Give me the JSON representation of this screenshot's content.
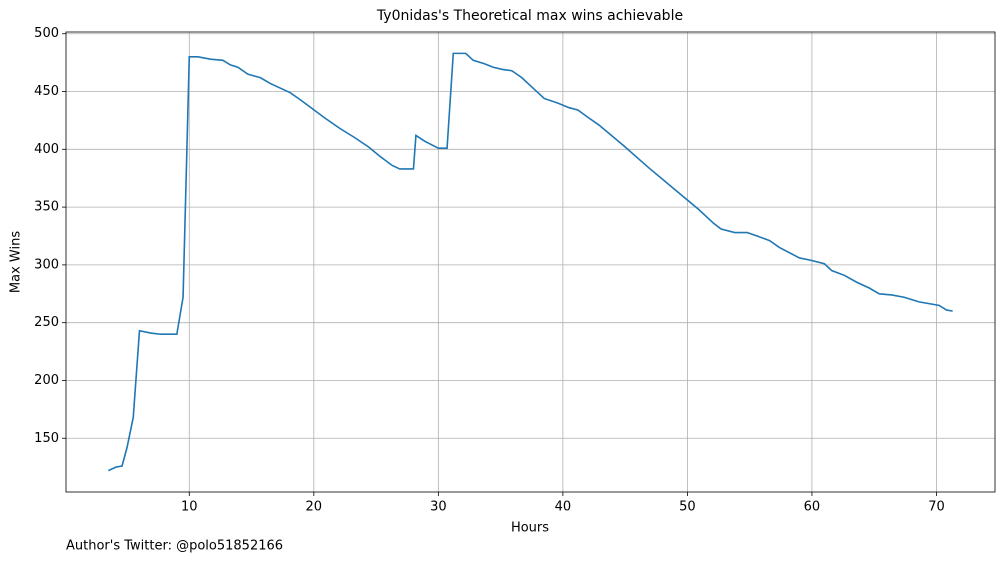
{
  "chart_data": {
    "type": "line",
    "title": "Ty0nidas's Theoretical max wins achievable",
    "xlabel": "Hours",
    "ylabel": "Max Wins",
    "footer": "Author's Twitter: @polo51852166",
    "x": [
      3.5,
      4.1,
      4.6,
      5.0,
      5.5,
      6.0,
      6.9,
      7.7,
      8.5,
      9.0,
      9.5,
      10.0,
      10.7,
      11.7,
      12.7,
      13.3,
      13.9,
      14.7,
      15.7,
      16.5,
      17.3,
      18.1,
      18.9,
      19.9,
      20.9,
      22.1,
      23.3,
      24.4,
      25.3,
      26.3,
      26.9,
      28.0,
      28.2,
      28.9,
      30.0,
      30.7,
      31.2,
      32.2,
      32.8,
      33.7,
      34.4,
      35.2,
      35.9,
      36.7,
      37.5,
      38.5,
      39.6,
      40.5,
      41.2,
      42.1,
      42.9,
      44.9,
      46.9,
      48.9,
      50.9,
      52.1,
      52.7,
      53.8,
      54.8,
      55.6,
      56.6,
      57.4,
      59.0,
      59.9,
      61.0,
      61.6,
      62.6,
      63.6,
      64.6,
      65.4,
      66.4,
      67.4,
      68.6,
      70.2,
      70.8,
      71.3
    ],
    "series": [
      {
        "name": "Max Wins",
        "color": "#1f77b4",
        "values": [
          122,
          125,
          126,
          142,
          168,
          243,
          241,
          240,
          240,
          240,
          272,
          480,
          480,
          478,
          477,
          473,
          471,
          465,
          462,
          457,
          453,
          449,
          443,
          435,
          427,
          418,
          410,
          402,
          394,
          386,
          383,
          383,
          412,
          407,
          401,
          401,
          483,
          483,
          477,
          474,
          471,
          469,
          468,
          462,
          454,
          444,
          440,
          436,
          434,
          427,
          421,
          403,
          384,
          366,
          348,
          336,
          331,
          328,
          328,
          325,
          321,
          315,
          306,
          304,
          301,
          295,
          291,
          285,
          280,
          275,
          274,
          272,
          268,
          265,
          261,
          260
        ]
      }
    ],
    "xlim": [
      0.1,
      74.7
    ],
    "ylim": [
      103.5,
      501.5
    ],
    "xticks": [
      10,
      20,
      30,
      40,
      50,
      60,
      70
    ],
    "yticks": [
      150,
      200,
      250,
      300,
      350,
      400,
      450,
      500
    ],
    "grid": true
  }
}
